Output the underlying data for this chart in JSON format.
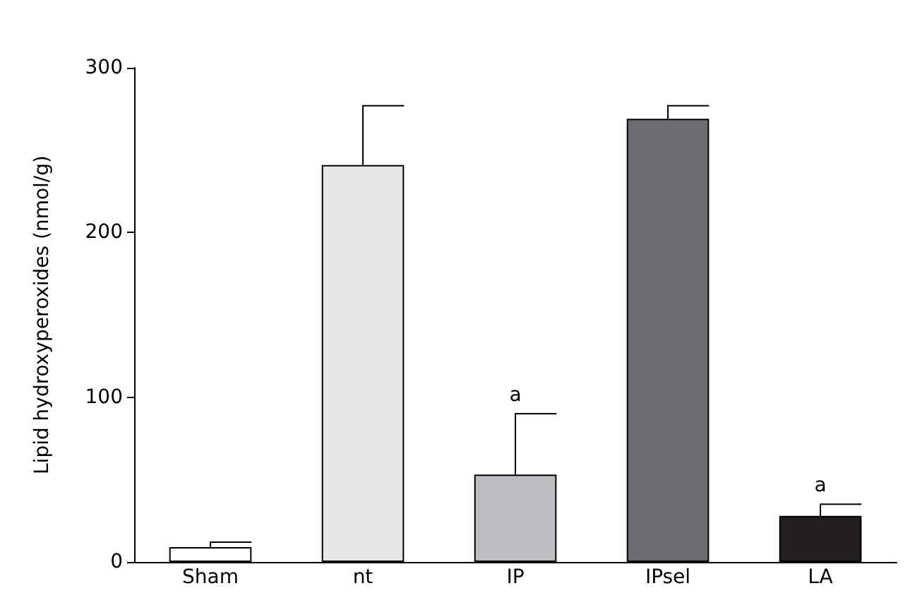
{
  "chart_data": {
    "type": "bar",
    "ylabel": "Lipid hydroxyperoxides (nmol/g)",
    "categories": [
      "Sham",
      "nt",
      "IP",
      "IPsel",
      "LA"
    ],
    "values": [
      9,
      241,
      53,
      269,
      28
    ],
    "colors": [
      "#ffffff",
      "#e6e7e9",
      "#bcbdc1",
      "#6b6c70",
      "#231f20"
    ],
    "errors": [
      [
        9,
        12
      ],
      [
        241,
        277
      ],
      [
        53,
        90
      ],
      [
        269,
        277
      ],
      [
        28,
        35
      ]
    ],
    "annotations": [
      {
        "text": "a",
        "x": "IP",
        "y": 90
      },
      {
        "text": "a",
        "x": "LA",
        "y": 35
      }
    ],
    "ylim": [
      0,
      300
    ],
    "yticks": [
      0,
      100,
      200,
      300
    ],
    "grid": false
  }
}
